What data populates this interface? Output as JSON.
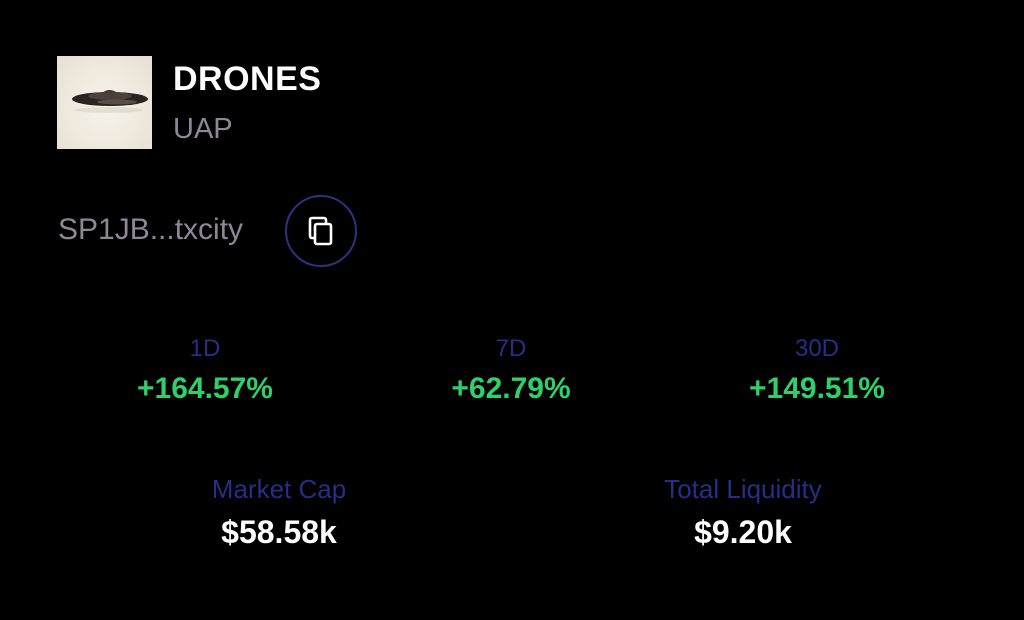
{
  "token": {
    "name": "DRONES",
    "symbol": "UAP",
    "image_icon": "ufo-saucer-image",
    "address_short": "SP1JB...txcity"
  },
  "actions": {
    "copy_icon": "copy-icon"
  },
  "changes": [
    {
      "label": "1D",
      "value": "+164.57%"
    },
    {
      "label": "7D",
      "value": "+62.79%"
    },
    {
      "label": "30D",
      "value": "+149.51%"
    }
  ],
  "metrics": [
    {
      "label": "Market Cap",
      "value": "$58.58k"
    },
    {
      "label": "Total Liquidity",
      "value": "$9.20k"
    }
  ],
  "colors": {
    "background": "#000000",
    "positive": "#2fcf6a",
    "label": "#262e86",
    "muted": "#8f8796",
    "copy_border": "#2b3380"
  }
}
